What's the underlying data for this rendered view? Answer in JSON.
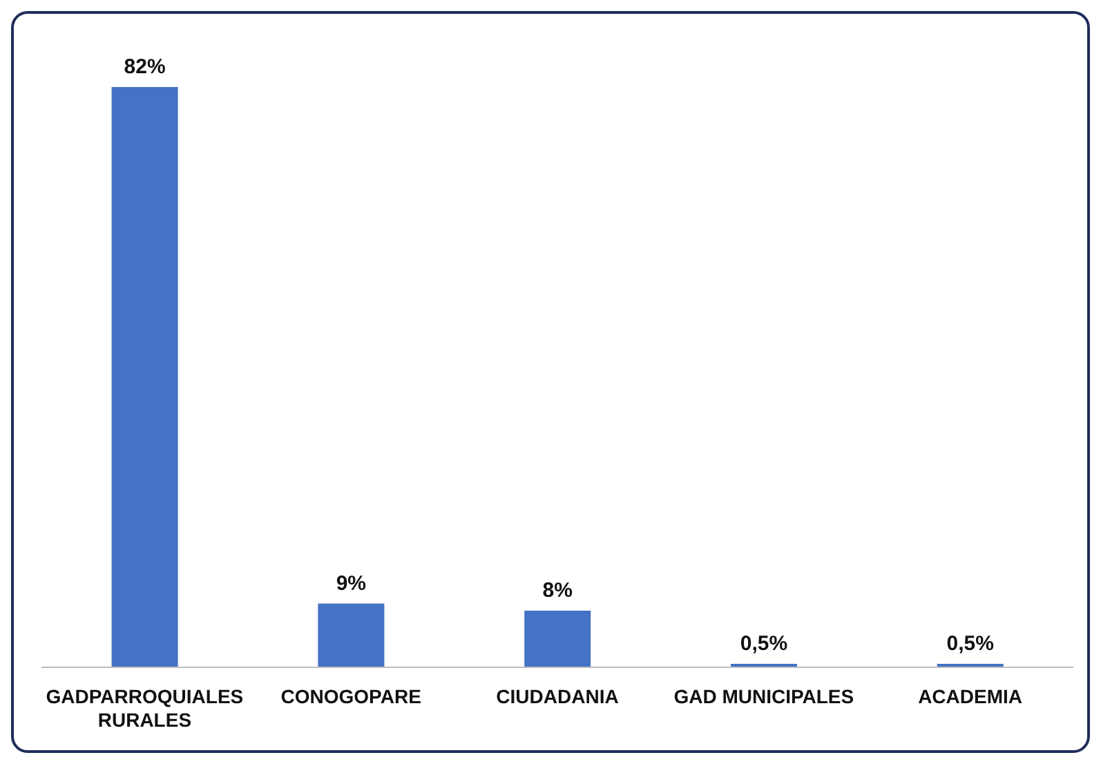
{
  "chart_data": {
    "type": "bar",
    "categories": [
      "GADPARROQUIALES RURALES",
      "CONOGOPARE",
      "CIUDADANIA",
      "GAD MUNICIPALES",
      "ACADEMIA"
    ],
    "values": [
      82,
      9,
      8,
      0.5,
      0.5
    ],
    "value_labels": [
      "82%",
      "9%",
      "8%",
      "0,5%",
      "0,5%"
    ],
    "color": "#4472c4",
    "grid": false,
    "legend": false
  }
}
